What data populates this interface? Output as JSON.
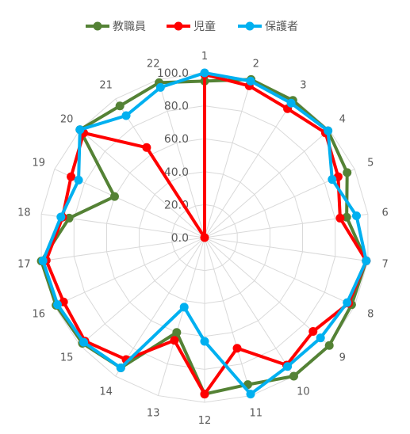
{
  "chart_data": {
    "type": "radar",
    "categories": [
      "1",
      "2",
      "3",
      "4",
      "5",
      "6",
      "7",
      "8",
      "9",
      "10",
      "11",
      "12",
      "13",
      "14",
      "15",
      "16",
      "17",
      "18",
      "19",
      "20",
      "21",
      "22"
    ],
    "rlim": [
      0,
      100
    ],
    "r_ticks": [
      "0.0",
      "20.0",
      "40.0",
      "60.0",
      "80.0",
      "100.0"
    ],
    "grid": true,
    "legend_position": "top",
    "series": [
      {
        "name": "教職員",
        "color": "#548235",
        "values": [
          95,
          100,
          99,
          99,
          95,
          87,
          99,
          98,
          100,
          100,
          93,
          95,
          60,
          94,
          98,
          99,
          100,
          83,
          60,
          100,
          95,
          98
        ]
      },
      {
        "name": "児童",
        "color": "#ff0000",
        "values": [
          99,
          96,
          93,
          97,
          89,
          83,
          99,
          96,
          87,
          92,
          70,
          95,
          65,
          88,
          96,
          94,
          97,
          87,
          89,
          97,
          65,
          0
        ]
      },
      {
        "name": "保護者",
        "color": "#00b0f0",
        "values": [
          100,
          99,
          97,
          99,
          85,
          93,
          99,
          95,
          93,
          93,
          99,
          63,
          44,
          94,
          97,
          98,
          99,
          88,
          84,
          100,
          88,
          95
        ]
      }
    ]
  }
}
